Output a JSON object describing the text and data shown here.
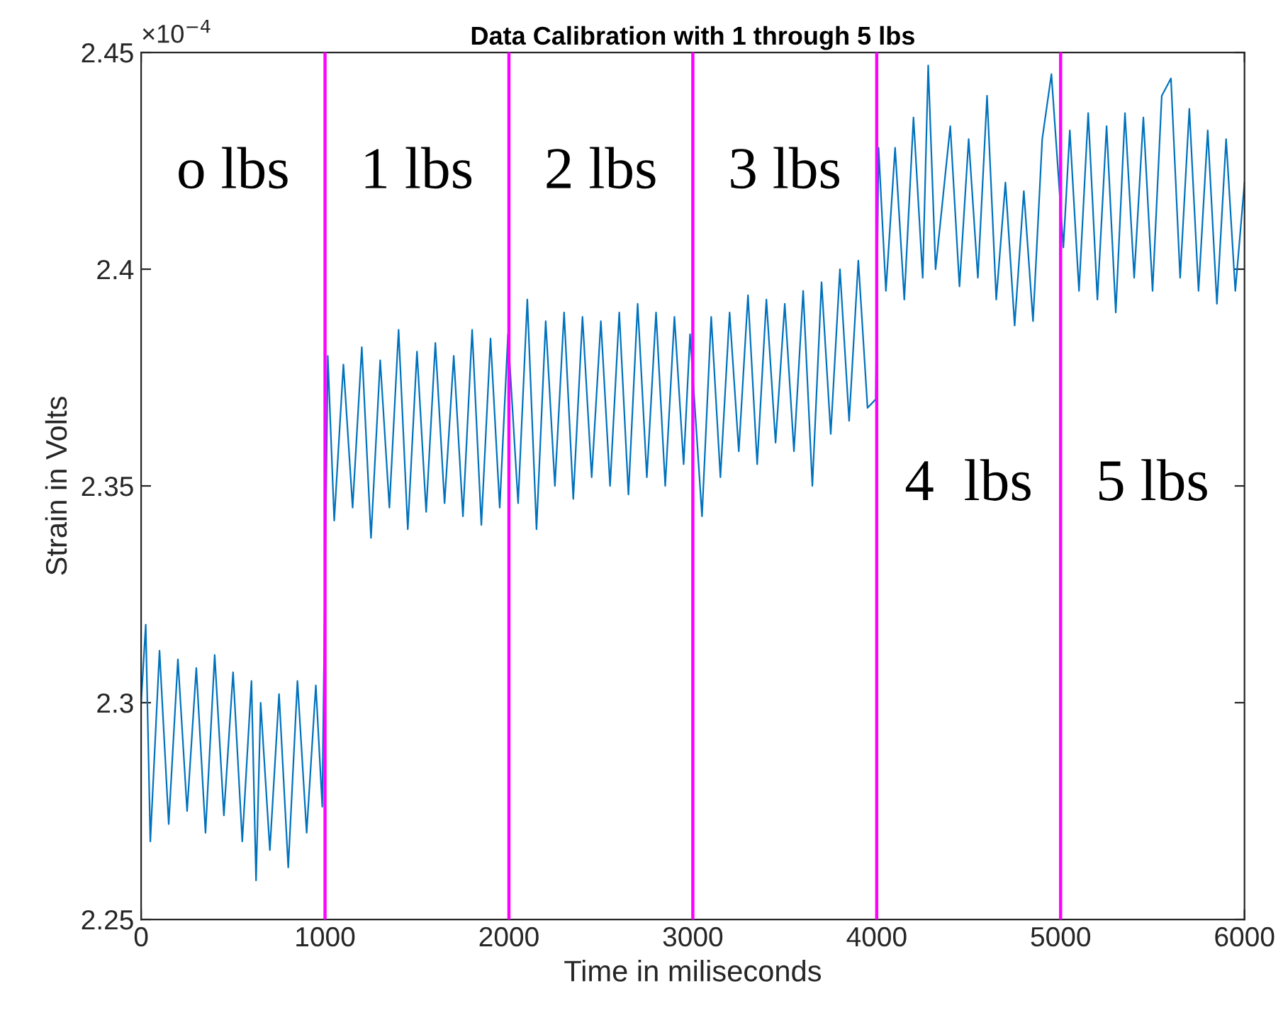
{
  "chart_data": {
    "type": "line",
    "title": "Data Calibration with 1 through 5 lbs",
    "xlabel": "Time in miliseconds",
    "ylabel": "Strain in Volts",
    "xlim": [
      0,
      6000
    ],
    "xticks": [
      0,
      1000,
      2000,
      3000,
      4000,
      5000,
      6000
    ],
    "ylim": [
      2.25,
      2.45
    ],
    "yticks": [
      2.25,
      2.3,
      2.35,
      2.4,
      2.45
    ],
    "grid": false,
    "legend": false,
    "marker": "none",
    "line_style": "solid",
    "series": [
      {
        "color": "#0072bd",
        "x": [
          0,
          25,
          50,
          100,
          150,
          200,
          250,
          300,
          350,
          400,
          450,
          500,
          550,
          600,
          625,
          650,
          700,
          750,
          800,
          850,
          900,
          950,
          985,
          1015,
          1050,
          1100,
          1150,
          1200,
          1250,
          1300,
          1350,
          1400,
          1450,
          1500,
          1550,
          1600,
          1650,
          1700,
          1750,
          1800,
          1850,
          1900,
          1950,
          1995,
          2050,
          2100,
          2150,
          2200,
          2250,
          2300,
          2350,
          2400,
          2450,
          2500,
          2550,
          2600,
          2650,
          2700,
          2750,
          2800,
          2850,
          2900,
          2950,
          2985,
          3050,
          3100,
          3150,
          3200,
          3250,
          3300,
          3350,
          3400,
          3450,
          3500,
          3550,
          3600,
          3650,
          3700,
          3750,
          3800,
          3850,
          3900,
          3950,
          3995,
          4010,
          4050,
          4100,
          4150,
          4200,
          4250,
          4280,
          4320,
          4400,
          4450,
          4500,
          4550,
          4600,
          4650,
          4700,
          4750,
          4800,
          4850,
          4900,
          4950,
          5015,
          5050,
          5100,
          5150,
          5200,
          5250,
          5300,
          5350,
          5400,
          5450,
          5500,
          5550,
          5600,
          5650,
          5700,
          5750,
          5800,
          5850,
          5900,
          5950,
          6000
        ],
        "values": [
          2.3,
          2.318,
          2.268,
          2.312,
          2.272,
          2.31,
          2.275,
          2.308,
          2.27,
          2.311,
          2.274,
          2.307,
          2.268,
          2.305,
          2.259,
          2.3,
          2.266,
          2.302,
          2.262,
          2.305,
          2.27,
          2.304,
          2.276,
          2.38,
          2.342,
          2.378,
          2.345,
          2.382,
          2.338,
          2.379,
          2.345,
          2.386,
          2.34,
          2.381,
          2.344,
          2.383,
          2.346,
          2.38,
          2.343,
          2.386,
          2.341,
          2.384,
          2.345,
          2.385,
          2.346,
          2.393,
          2.34,
          2.388,
          2.35,
          2.39,
          2.347,
          2.389,
          2.352,
          2.388,
          2.35,
          2.39,
          2.348,
          2.392,
          2.352,
          2.39,
          2.35,
          2.389,
          2.355,
          2.385,
          2.343,
          2.389,
          2.352,
          2.39,
          2.358,
          2.394,
          2.355,
          2.393,
          2.36,
          2.392,
          2.358,
          2.395,
          2.35,
          2.397,
          2.362,
          2.4,
          2.365,
          2.402,
          2.368,
          2.37,
          2.428,
          2.395,
          2.428,
          2.393,
          2.435,
          2.398,
          2.447,
          2.4,
          2.433,
          2.396,
          2.43,
          2.398,
          2.44,
          2.393,
          2.42,
          2.387,
          2.418,
          2.388,
          2.43,
          2.445,
          2.405,
          2.432,
          2.395,
          2.436,
          2.393,
          2.433,
          2.39,
          2.436,
          2.398,
          2.435,
          2.395,
          2.44,
          2.444,
          2.398,
          2.437,
          2.395,
          2.432,
          2.392,
          2.43,
          2.395,
          2.42
        ]
      }
    ],
    "ref_lines": [
      {
        "axis": "x",
        "value": 1000,
        "color": "#ff00ff"
      },
      {
        "axis": "x",
        "value": 2000,
        "color": "#ff00ff"
      },
      {
        "axis": "x",
        "value": 3000,
        "color": "#ff00ff"
      },
      {
        "axis": "x",
        "value": 4000,
        "color": "#ff00ff"
      },
      {
        "axis": "x",
        "value": 5000,
        "color": "#ff00ff"
      }
    ],
    "annotations": [
      "×10$^{−4}$",
      "o lbs",
      "1 lbs",
      "2 lbs",
      "3 lbs",
      "4  lbs",
      "5 lbs"
    ]
  }
}
